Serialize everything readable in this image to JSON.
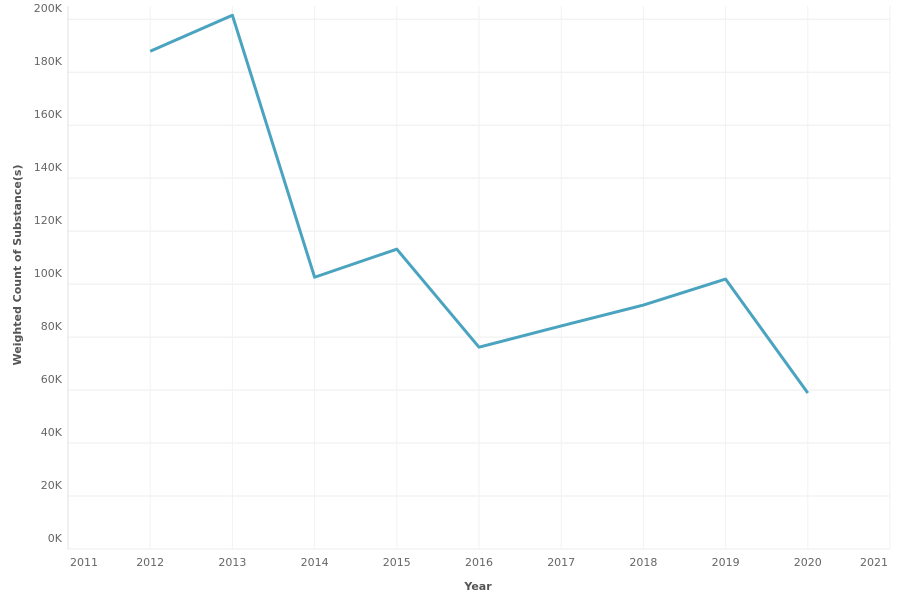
{
  "chart_data": {
    "type": "line",
    "x_label": "Year",
    "y_label": "Weighted Count of Substance(s)",
    "x": [
      2012,
      2013,
      2014,
      2015,
      2016,
      2017,
      2018,
      2019,
      2020
    ],
    "series": [
      {
        "color": "#4aa3bf",
        "values": [
          187900,
          201500,
          102600,
          113200,
          76200,
          84200,
          92100,
          101900,
          58900
        ]
      }
    ],
    "xlim": [
      2011,
      2021
    ],
    "xticks": [
      2011,
      2012,
      2013,
      2014,
      2015,
      2016,
      2017,
      2018,
      2019,
      2020,
      2021
    ],
    "ylim": [
      0,
      205000
    ],
    "yticks": [
      {
        "value": 0,
        "label": "0K"
      },
      {
        "value": 20000,
        "label": "20K"
      },
      {
        "value": 40000,
        "label": "40K"
      },
      {
        "value": 60000,
        "label": "60K"
      },
      {
        "value": 80000,
        "label": "80K"
      },
      {
        "value": 100000,
        "label": "100K"
      },
      {
        "value": 120000,
        "label": "120K"
      },
      {
        "value": 140000,
        "label": "140K"
      },
      {
        "value": 160000,
        "label": "160K"
      },
      {
        "value": 180000,
        "label": "180K"
      },
      {
        "value": 200000,
        "label": "200K"
      }
    ],
    "grid": true
  }
}
